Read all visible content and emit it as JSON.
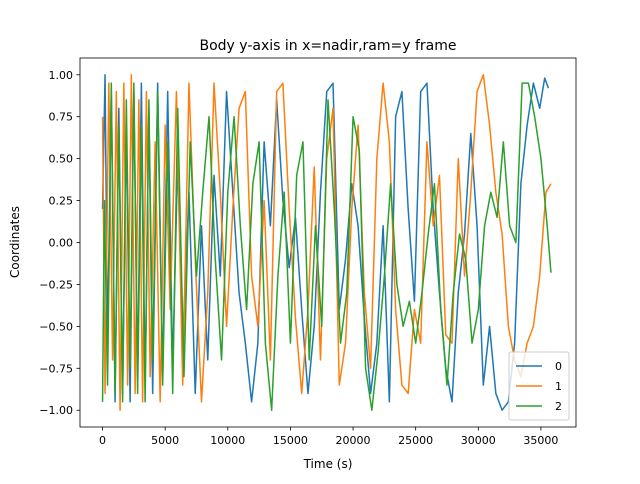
{
  "chart_data": {
    "type": "line",
    "title": "Body y-axis in x=nadir,ram=y frame",
    "xlabel": "Time (s)",
    "ylabel": "Coordinates",
    "xlim": [
      -1800,
      37800
    ],
    "ylim": [
      -1.1,
      1.1
    ],
    "xticks": [
      0,
      5000,
      10000,
      15000,
      20000,
      25000,
      30000,
      35000
    ],
    "yticks": [
      -1.0,
      -0.75,
      -0.5,
      -0.25,
      0.0,
      0.25,
      0.5,
      0.75,
      1.0
    ],
    "xtick_labels": [
      "0",
      "5000",
      "10000",
      "15000",
      "20000",
      "25000",
      "30000",
      "35000"
    ],
    "ytick_labels": [
      "−1.00",
      "−0.75",
      "−0.50",
      "−0.25",
      "0.00",
      "0.25",
      "0.50",
      "0.75",
      "1.00"
    ],
    "grid": false,
    "legend_position": "lower right",
    "series": [
      {
        "name": "0",
        "color": "#1f77b4",
        "points": [
          [
            0,
            0.2
          ],
          [
            200,
            1.0
          ],
          [
            400,
            -0.6
          ],
          [
            700,
            0.9
          ],
          [
            1000,
            -0.95
          ],
          [
            1300,
            0.8
          ],
          [
            1600,
            -0.9
          ],
          [
            1900,
            0.7
          ],
          [
            2200,
            -0.95
          ],
          [
            2500,
            0.9
          ],
          [
            2800,
            -0.8
          ],
          [
            3100,
            0.95
          ],
          [
            3400,
            -0.85
          ],
          [
            3700,
            0.8
          ],
          [
            4000,
            -0.9
          ],
          [
            4400,
            0.95
          ],
          [
            4800,
            -0.8
          ],
          [
            5200,
            0.9
          ],
          [
            5600,
            -0.75
          ],
          [
            6000,
            0.5
          ],
          [
            6400,
            -0.6
          ],
          [
            6900,
            0.3
          ],
          [
            7400,
            -0.9
          ],
          [
            7900,
            0.1
          ],
          [
            8400,
            -0.7
          ],
          [
            8900,
            0.4
          ],
          [
            9400,
            -0.2
          ],
          [
            9900,
            0.9
          ],
          [
            10400,
            0.3
          ],
          [
            10900,
            -0.3
          ],
          [
            11400,
            -0.6
          ],
          [
            11900,
            -0.95
          ],
          [
            12400,
            -0.6
          ],
          [
            12900,
            0.6
          ],
          [
            13400,
            0.1
          ],
          [
            13900,
            0.85
          ],
          [
            14400,
            0.25
          ],
          [
            14900,
            -0.15
          ],
          [
            15400,
            0.15
          ],
          [
            15900,
            -0.4
          ],
          [
            16400,
            -0.9
          ],
          [
            16900,
            -0.5
          ],
          [
            17400,
            0.3
          ],
          [
            17900,
            0.9
          ],
          [
            18400,
            0.95
          ],
          [
            18900,
            -0.4
          ],
          [
            19400,
            -0.1
          ],
          [
            19900,
            0.35
          ],
          [
            20400,
            0.1
          ],
          [
            20900,
            -0.45
          ],
          [
            21400,
            -0.9
          ],
          [
            21900,
            -0.6
          ],
          [
            22400,
            0.1
          ],
          [
            22900,
            -0.95
          ],
          [
            23400,
            0.75
          ],
          [
            23900,
            0.9
          ],
          [
            24400,
            0.2
          ],
          [
            24900,
            -0.35
          ],
          [
            25400,
            0.9
          ],
          [
            25900,
            0.95
          ],
          [
            26400,
            0.2
          ],
          [
            26900,
            -0.3
          ],
          [
            27400,
            -0.75
          ],
          [
            27900,
            -0.95
          ],
          [
            28400,
            -0.3
          ],
          [
            28900,
            0.05
          ],
          [
            29400,
            0.65
          ],
          [
            29900,
            0.1
          ],
          [
            30400,
            -0.85
          ],
          [
            30900,
            -0.5
          ],
          [
            31400,
            -0.9
          ],
          [
            31900,
            -1.0
          ],
          [
            32400,
            -0.95
          ],
          [
            32900,
            -0.6
          ],
          [
            33400,
            0.35
          ],
          [
            33900,
            0.7
          ],
          [
            34400,
            0.95
          ],
          [
            34900,
            0.8
          ],
          [
            35300,
            0.98
          ],
          [
            35600,
            0.92
          ]
        ]
      },
      {
        "name": "1",
        "color": "#ff7f0e",
        "points": [
          [
            0,
            0.75
          ],
          [
            200,
            -0.9
          ],
          [
            500,
            0.95
          ],
          [
            800,
            -0.7
          ],
          [
            1100,
            0.9
          ],
          [
            1400,
            -1.0
          ],
          [
            1700,
            0.95
          ],
          [
            2000,
            -0.85
          ],
          [
            2300,
            1.0
          ],
          [
            2600,
            -0.9
          ],
          [
            2900,
            0.85
          ],
          [
            3200,
            -0.95
          ],
          [
            3500,
            0.9
          ],
          [
            3800,
            -0.8
          ],
          [
            4200,
            0.6
          ],
          [
            4600,
            -0.95
          ],
          [
            5000,
            0.7
          ],
          [
            5400,
            -0.4
          ],
          [
            5900,
            0.9
          ],
          [
            6400,
            -0.85
          ],
          [
            6900,
            0.95
          ],
          [
            7400,
            -0.1
          ],
          [
            7900,
            -0.95
          ],
          [
            8400,
            -0.3
          ],
          [
            8900,
            0.95
          ],
          [
            9400,
            0.3
          ],
          [
            9900,
            -0.5
          ],
          [
            10400,
            0.2
          ],
          [
            10900,
            0.8
          ],
          [
            11400,
            0.9
          ],
          [
            11900,
            -0.2
          ],
          [
            12400,
            -0.5
          ],
          [
            12900,
            0.25
          ],
          [
            13400,
            -0.7
          ],
          [
            13900,
            0.9
          ],
          [
            14400,
            0.95
          ],
          [
            14900,
            0.2
          ],
          [
            15400,
            -0.45
          ],
          [
            15900,
            -0.9
          ],
          [
            16400,
            -0.4
          ],
          [
            16900,
            0.45
          ],
          [
            17400,
            -0.7
          ],
          [
            17900,
            0.5
          ],
          [
            18400,
            0.8
          ],
          [
            18900,
            -0.85
          ],
          [
            19400,
            -0.6
          ],
          [
            19900,
            0.2
          ],
          [
            20400,
            0.7
          ],
          [
            20900,
            -0.3
          ],
          [
            21400,
            -0.75
          ],
          [
            21900,
            0.5
          ],
          [
            22400,
            0.95
          ],
          [
            22900,
            0.6
          ],
          [
            23400,
            -0.4
          ],
          [
            23900,
            -0.85
          ],
          [
            24400,
            -0.9
          ],
          [
            24900,
            -0.4
          ],
          [
            25400,
            -0.6
          ],
          [
            25900,
            0.6
          ],
          [
            26400,
            0.1
          ],
          [
            26900,
            0.4
          ],
          [
            27400,
            -0.55
          ],
          [
            27900,
            -0.6
          ],
          [
            28400,
            0.5
          ],
          [
            28900,
            -0.2
          ],
          [
            29400,
            0.3
          ],
          [
            29900,
            0.9
          ],
          [
            30400,
            1.0
          ],
          [
            30900,
            0.7
          ],
          [
            31400,
            0.3
          ],
          [
            31900,
            0.05
          ],
          [
            32400,
            -0.5
          ],
          [
            32900,
            -0.7
          ],
          [
            33400,
            -0.8
          ],
          [
            33900,
            -0.6
          ],
          [
            34400,
            -0.5
          ],
          [
            34900,
            -0.2
          ],
          [
            35400,
            0.3
          ],
          [
            35800,
            0.35
          ]
        ]
      },
      {
        "name": "2",
        "color": "#2ca02c",
        "points": [
          [
            0,
            -0.95
          ],
          [
            150,
            0.25
          ],
          [
            400,
            -0.85
          ],
          [
            700,
            0.95
          ],
          [
            1000,
            -0.9
          ],
          [
            1300,
            0.7
          ],
          [
            1600,
            -0.95
          ],
          [
            1900,
            0.85
          ],
          [
            2200,
            -0.75
          ],
          [
            2500,
            0.95
          ],
          [
            2800,
            -0.9
          ],
          [
            3100,
            0.7
          ],
          [
            3400,
            -0.95
          ],
          [
            3700,
            0.85
          ],
          [
            4000,
            -0.7
          ],
          [
            4400,
            0.9
          ],
          [
            4800,
            -0.85
          ],
          [
            5200,
            0.6
          ],
          [
            5600,
            -0.9
          ],
          [
            6000,
            0.8
          ],
          [
            6500,
            -0.8
          ],
          [
            7000,
            0.6
          ],
          [
            7500,
            -0.2
          ],
          [
            8000,
            0.3
          ],
          [
            8500,
            0.75
          ],
          [
            9000,
            -0.1
          ],
          [
            9500,
            -0.7
          ],
          [
            10000,
            0.3
          ],
          [
            10500,
            0.75
          ],
          [
            11000,
            0.1
          ],
          [
            11500,
            -0.4
          ],
          [
            12000,
            0.35
          ],
          [
            12500,
            0.6
          ],
          [
            13000,
            -0.6
          ],
          [
            13500,
            -1.0
          ],
          [
            14000,
            -0.2
          ],
          [
            14500,
            0.3
          ],
          [
            15000,
            -0.6
          ],
          [
            15500,
            0.4
          ],
          [
            16000,
            0.6
          ],
          [
            16500,
            -0.7
          ],
          [
            17000,
            0.1
          ],
          [
            17500,
            -0.5
          ],
          [
            18000,
            0.85
          ],
          [
            18500,
            0.2
          ],
          [
            19000,
            -0.6
          ],
          [
            19500,
            -0.3
          ],
          [
            20000,
            0.75
          ],
          [
            20500,
            0.55
          ],
          [
            21000,
            -0.75
          ],
          [
            21500,
            -1.0
          ],
          [
            22000,
            -0.65
          ],
          [
            22500,
            -0.2
          ],
          [
            23000,
            0.35
          ],
          [
            23500,
            -0.25
          ],
          [
            24000,
            -0.5
          ],
          [
            24500,
            -0.35
          ],
          [
            25000,
            -0.6
          ],
          [
            25500,
            -0.3
          ],
          [
            26000,
            0.05
          ],
          [
            26500,
            0.35
          ],
          [
            27000,
            -0.4
          ],
          [
            27500,
            -0.85
          ],
          [
            28000,
            -0.3
          ],
          [
            28500,
            0.05
          ],
          [
            29000,
            -0.1
          ],
          [
            29500,
            -0.6
          ],
          [
            30000,
            -0.4
          ],
          [
            30500,
            0.1
          ],
          [
            31000,
            0.3
          ],
          [
            31500,
            0.15
          ],
          [
            32000,
            0.6
          ],
          [
            32500,
            0.1
          ],
          [
            33000,
            0.0
          ],
          [
            33500,
            0.95
          ],
          [
            34000,
            0.95
          ],
          [
            34500,
            0.75
          ],
          [
            35000,
            0.5
          ],
          [
            35500,
            0.1
          ],
          [
            35800,
            -0.18
          ]
        ]
      }
    ]
  }
}
